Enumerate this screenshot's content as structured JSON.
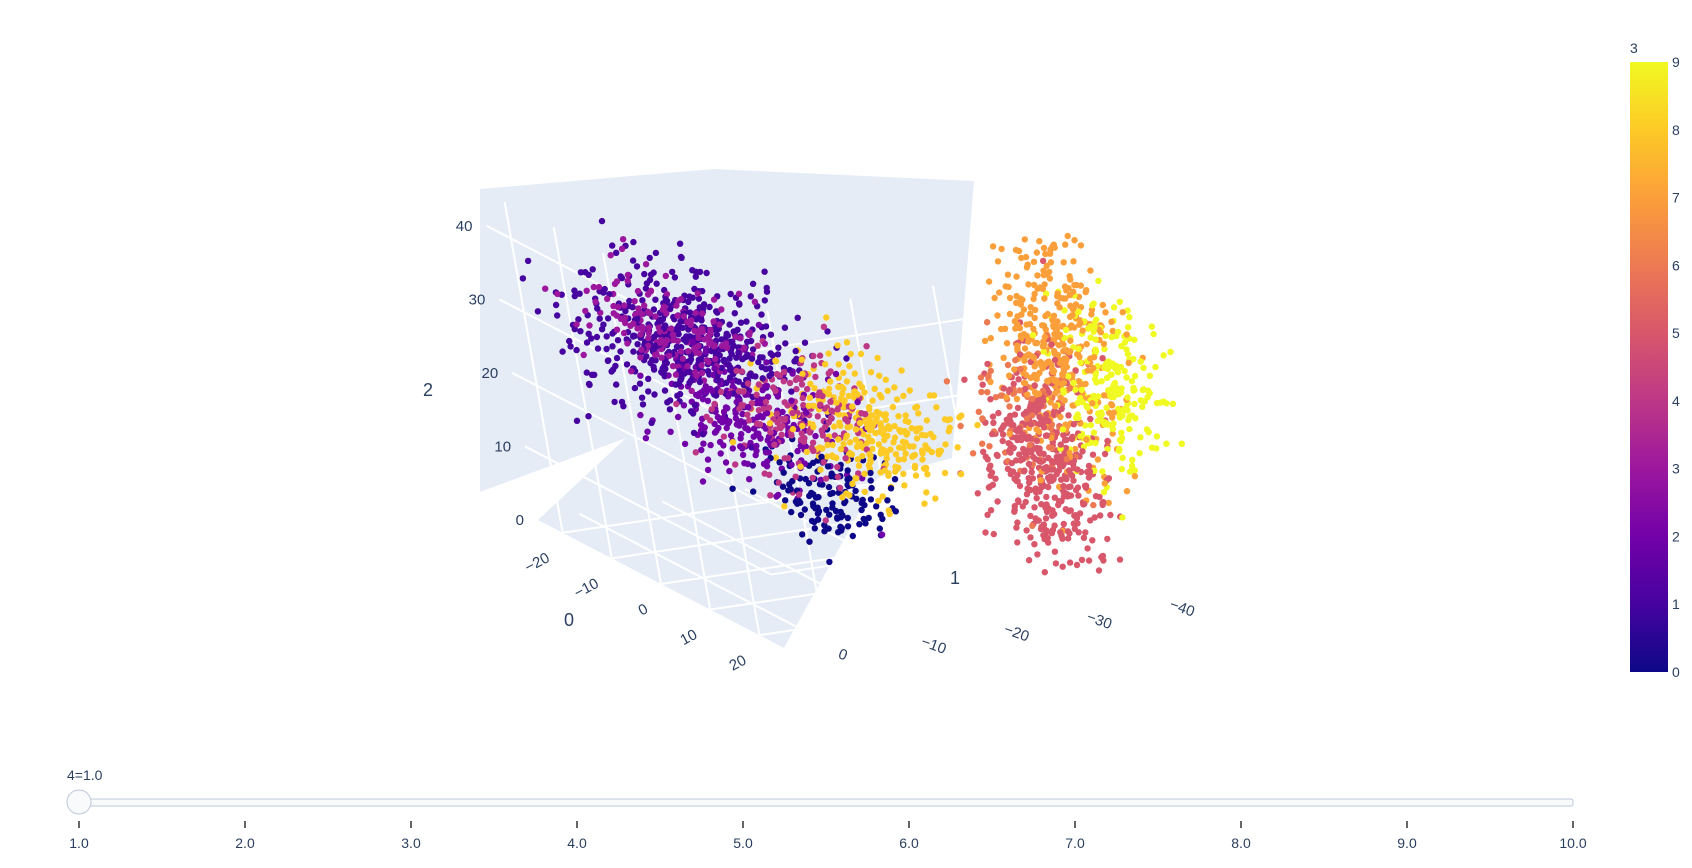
{
  "chart_data": {
    "type": "scatter3d",
    "title": "",
    "axes": {
      "x": {
        "title": "0",
        "range": [
          -25,
          25
        ],
        "ticks": [
          "−20",
          "−10",
          "0",
          "10",
          "20"
        ]
      },
      "y": {
        "title": "1",
        "range": [
          -45,
          5
        ],
        "ticks": [
          "0",
          "−10",
          "−20",
          "−30",
          "−40"
        ]
      },
      "z": {
        "title": "2",
        "range": [
          0,
          45
        ],
        "ticks": [
          "0",
          "10",
          "20",
          "30",
          "40"
        ]
      }
    },
    "grid": true,
    "colorscale": "plasma",
    "colors": [
      "#0d0887",
      "#46039f",
      "#7201a8",
      "#9c179e",
      "#bd3786",
      "#d8576b",
      "#ed7953",
      "#fb9f3a",
      "#fdca26",
      "#f0f921"
    ],
    "colorbar": {
      "title": "3",
      "min": 0,
      "max": 9,
      "ticks": [
        "0",
        "1",
        "2",
        "3",
        "4",
        "5",
        "6",
        "7",
        "8",
        "9"
      ]
    },
    "clusters": [
      {
        "color_value": 0,
        "center": [
          3,
          -15,
          10
        ],
        "count": 130
      },
      {
        "color_value": 1,
        "center": [
          -15,
          -10,
          25
        ],
        "count": 520
      },
      {
        "color_value": 2,
        "center": [
          -5,
          -12,
          18
        ],
        "count": 260
      },
      {
        "color_value": 3,
        "center": [
          -8,
          -5,
          30
        ],
        "count": 160
      },
      {
        "color_value": 4,
        "center": [
          5,
          -12,
          22
        ],
        "count": 170
      },
      {
        "color_value": 5,
        "center": [
          15,
          -35,
          15
        ],
        "count": 420
      },
      {
        "color_value": 6,
        "center": [
          14,
          -34,
          22
        ],
        "count": 80
      },
      {
        "color_value": 7,
        "center": [
          16,
          -38,
          30
        ],
        "count": 360
      },
      {
        "color_value": 8,
        "center": [
          8,
          -18,
          20
        ],
        "count": 300
      },
      {
        "color_value": 9,
        "center": [
          18,
          -42,
          25
        ],
        "count": 220
      }
    ]
  },
  "slider": {
    "label": "4=1.0",
    "value": 1.0,
    "min": 1.0,
    "max": 10.0,
    "ticks": [
      "1.0",
      "2.0",
      "3.0",
      "4.0",
      "5.0",
      "6.0",
      "7.0",
      "8.0",
      "9.0",
      "10.0"
    ]
  }
}
